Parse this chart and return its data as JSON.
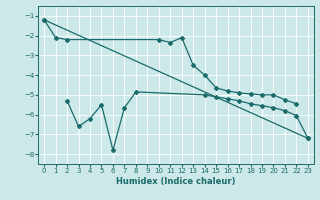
{
  "xlabel": "Humidex (Indice chaleur)",
  "xlim": [
    -0.5,
    23.5
  ],
  "ylim": [
    -8.5,
    -0.5
  ],
  "yticks": [
    -8,
    -7,
    -6,
    -5,
    -4,
    -3,
    -2,
    -1
  ],
  "xticks": [
    0,
    1,
    2,
    3,
    4,
    5,
    6,
    7,
    8,
    9,
    10,
    11,
    12,
    13,
    14,
    15,
    16,
    17,
    18,
    19,
    20,
    21,
    22,
    23
  ],
  "bg_color": "#cde8e8",
  "line_color": "#1a6b6b",
  "line1_x": [
    0,
    1,
    2,
    10,
    11,
    12,
    13,
    14,
    15,
    16,
    17,
    18,
    19,
    20,
    21,
    22
  ],
  "line1_y": [
    -1.2,
    -2.1,
    -2.2,
    -2.2,
    -2.35,
    -2.1,
    -3.5,
    -4.0,
    -4.65,
    -4.8,
    -4.9,
    -4.95,
    -5.0,
    -5.0,
    -5.25,
    -5.45
  ],
  "line2_x": [
    0,
    23
  ],
  "line2_y": [
    -1.2,
    -7.2
  ],
  "line3_x": [
    2,
    3,
    4,
    5,
    6,
    7,
    8,
    14,
    15,
    16,
    17,
    18,
    19,
    20,
    21,
    22,
    23
  ],
  "line3_y": [
    -5.3,
    -6.6,
    -6.2,
    -5.5,
    -7.8,
    -5.65,
    -4.85,
    -5.0,
    -5.1,
    -5.2,
    -5.3,
    -5.45,
    -5.55,
    -5.65,
    -5.8,
    -6.05,
    -7.2
  ]
}
